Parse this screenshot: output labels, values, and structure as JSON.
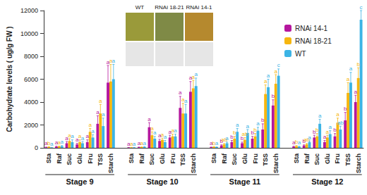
{
  "chart_data": {
    "type": "bar",
    "y_label": "Carbohydrate levels ( ug/g FW )",
    "categories": [
      "Sta",
      "Raf",
      "Suc",
      "Glu",
      "Fru",
      "TSS",
      "Starch",
      null,
      "Sta",
      "Raf",
      "Suc",
      "Glu",
      "Fru",
      "TSS",
      "Starch",
      null,
      "Sta",
      "Raf",
      "Suc",
      "Glu",
      "Fru",
      "TSS",
      "Starch",
      null,
      "Sta",
      "Raf",
      "Suc",
      "Glu",
      "Fru",
      "TSS",
      "Starch"
    ],
    "stages": [
      "Stage 9",
      "Stage 10",
      "Stage 11",
      "Stage 12"
    ],
    "annotations": [
      "WT",
      "RNAi 18-21",
      "RNAi 14-1"
    ],
    "ylim": [
      0,
      12000
    ],
    "yticks": [
      0,
      2000,
      4000,
      6000,
      8000,
      10000,
      12000
    ],
    "legend": "upper right",
    "grid": false,
    "series": [
      {
        "name": "RNAi 14-1",
        "color": "#b5179e",
        "values": [
          50,
          100,
          400,
          300,
          500,
          2100,
          5700,
          null,
          20,
          50,
          1800,
          600,
          900,
          3500,
          4900,
          null,
          50,
          200,
          500,
          400,
          800,
          1600,
          3700,
          null,
          100,
          200,
          900,
          500,
          1000,
          2400,
          4000
        ],
        "errors": [
          20,
          40,
          150,
          100,
          200,
          700,
          1500,
          null,
          10,
          20,
          400,
          150,
          200,
          1000,
          900,
          null,
          20,
          60,
          150,
          100,
          200,
          500,
          500,
          null,
          40,
          60,
          200,
          150,
          250,
          700,
          600
        ],
        "letters": [
          "a",
          "a",
          "a",
          "a",
          "a",
          "a",
          "a",
          null,
          "a",
          "a",
          "a",
          "a",
          "a",
          "a",
          "a",
          null,
          "a",
          "b",
          "b",
          "b",
          "b",
          "b",
          "b",
          null,
          "a",
          "b",
          "b",
          "a",
          "b",
          "b",
          "a"
        ]
      },
      {
        "name": "RNAi 18-21",
        "color": "#f6b60f",
        "values": [
          80,
          120,
          600,
          500,
          1400,
          3000,
          5800,
          null,
          30,
          60,
          1100,
          700,
          1000,
          3000,
          5200,
          null,
          80,
          300,
          800,
          700,
          1000,
          4700,
          5600,
          null,
          150,
          300,
          1000,
          900,
          2200,
          4800,
          6100
        ],
        "errors": [
          30,
          40,
          200,
          200,
          300,
          800,
          1500,
          null,
          10,
          20,
          300,
          150,
          200,
          900,
          700,
          null,
          30,
          80,
          200,
          200,
          250,
          800,
          800,
          null,
          50,
          80,
          250,
          200,
          400,
          900,
          900
        ],
        "letters": [
          "b",
          "a",
          "a",
          "a",
          "a",
          "a",
          "a",
          null,
          "a",
          "a",
          "a",
          "a",
          "a",
          "a",
          "a",
          null,
          "b",
          "ab",
          "b",
          "ab",
          "b",
          "a",
          "a",
          null,
          "b",
          "ab",
          "b",
          "a",
          "a",
          "a",
          "b"
        ]
      },
      {
        "name": "WT",
        "color": "#3cb4e5",
        "values": [
          30,
          150,
          500,
          400,
          900,
          1900,
          6000,
          null,
          20,
          80,
          800,
          500,
          1000,
          3000,
          5400,
          null,
          60,
          400,
          1400,
          1300,
          1500,
          5300,
          6300,
          null,
          100,
          500,
          2100,
          1200,
          1600,
          5700,
          11200
        ],
        "errors": [
          10,
          50,
          200,
          150,
          250,
          700,
          1300,
          null,
          10,
          30,
          200,
          150,
          200,
          800,
          700,
          null,
          20,
          100,
          300,
          300,
          300,
          700,
          600,
          null,
          40,
          100,
          400,
          300,
          300,
          900,
          800
        ],
        "letters": [
          "a",
          "a",
          "a",
          "a",
          "a",
          "a",
          "a",
          null,
          "a",
          "a",
          "a",
          "a",
          "a",
          "a",
          "a",
          null,
          "a",
          "a",
          "a",
          "a",
          "a",
          "a",
          "c",
          null,
          "a",
          "a",
          "a",
          "a",
          "ab",
          "a",
          "c"
        ]
      }
    ]
  }
}
